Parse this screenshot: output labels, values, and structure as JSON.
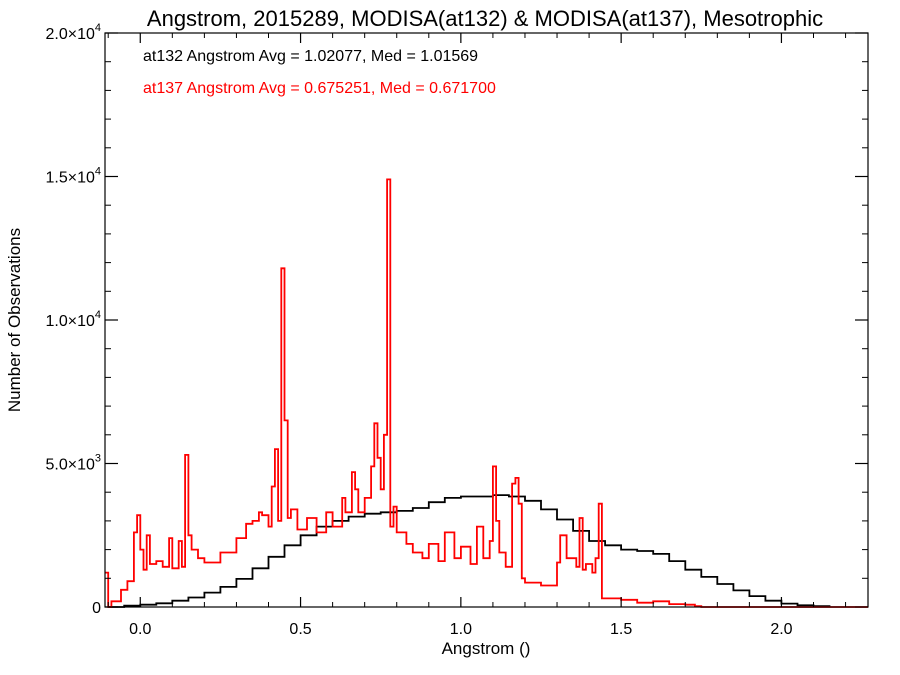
{
  "chart_data": {
    "type": "line",
    "title": "Angstrom, 2015289, MODISA(at132) & MODISA(at137), Mesotrophic",
    "xlabel": "Angstrom ()",
    "ylabel": "Number of Observations",
    "xlim": [
      -0.11,
      2.27
    ],
    "ylim": [
      0,
      20000
    ],
    "grid": false,
    "x_ticks": [
      {
        "value": 0.0,
        "label": "0.0"
      },
      {
        "value": 0.5,
        "label": "0.5"
      },
      {
        "value": 1.0,
        "label": "1.0"
      },
      {
        "value": 1.5,
        "label": "1.5"
      },
      {
        "value": 2.0,
        "label": "2.0"
      }
    ],
    "y_ticks": [
      {
        "value": 0,
        "mant": "0",
        "exp": ""
      },
      {
        "value": 5000,
        "mant": "5.0×10",
        "exp": "3"
      },
      {
        "value": 10000,
        "mant": "1.0×10",
        "exp": "4"
      },
      {
        "value": 15000,
        "mant": "1.5×10",
        "exp": "4"
      },
      {
        "value": 20000,
        "mant": "2.0×10",
        "exp": "4"
      }
    ],
    "annotations": [
      {
        "text": "at132 Angstrom Avg = 1.02077, Med = 1.01569",
        "color": "#000000"
      },
      {
        "text": "at137 Angstrom Avg = 0.675251, Med = 0.671700",
        "color": "#ff0000"
      }
    ],
    "series": [
      {
        "color": "#000000",
        "x": [
          -0.1,
          -0.05,
          0.0,
          0.05,
          0.1,
          0.15,
          0.2,
          0.25,
          0.3,
          0.35,
          0.4,
          0.45,
          0.5,
          0.55,
          0.6,
          0.65,
          0.7,
          0.75,
          0.8,
          0.85,
          0.9,
          0.95,
          1.0,
          1.05,
          1.1,
          1.15,
          1.2,
          1.25,
          1.3,
          1.35,
          1.4,
          1.45,
          1.5,
          1.55,
          1.6,
          1.65,
          1.7,
          1.75,
          1.8,
          1.85,
          1.9,
          1.95,
          2.0,
          2.05,
          2.1,
          2.15
        ],
        "y": [
          0,
          50,
          80,
          130,
          220,
          330,
          500,
          700,
          980,
          1350,
          1750,
          2150,
          2500,
          2800,
          3000,
          3150,
          3250,
          3300,
          3350,
          3450,
          3650,
          3800,
          3850,
          3850,
          3900,
          3850,
          3700,
          3400,
          3050,
          2650,
          2300,
          2150,
          2000,
          1950,
          1850,
          1600,
          1300,
          1050,
          800,
          580,
          380,
          220,
          120,
          60,
          30,
          0
        ]
      },
      {
        "color": "#ff0000",
        "x": [
          -0.11,
          -0.1,
          -0.09,
          -0.06,
          -0.04,
          -0.02,
          -0.01,
          0.0,
          0.01,
          0.02,
          0.03,
          0.05,
          0.07,
          0.09,
          0.1,
          0.12,
          0.13,
          0.14,
          0.15,
          0.16,
          0.18,
          0.2,
          0.25,
          0.3,
          0.33,
          0.35,
          0.37,
          0.38,
          0.4,
          0.41,
          0.42,
          0.43,
          0.44,
          0.45,
          0.46,
          0.47,
          0.49,
          0.52,
          0.55,
          0.58,
          0.6,
          0.63,
          0.64,
          0.66,
          0.67,
          0.68,
          0.7,
          0.72,
          0.73,
          0.74,
          0.75,
          0.76,
          0.77,
          0.775,
          0.78,
          0.79,
          0.8,
          0.83,
          0.85,
          0.88,
          0.9,
          0.93,
          0.95,
          0.98,
          1.0,
          1.03,
          1.05,
          1.07,
          1.09,
          1.1,
          1.11,
          1.12,
          1.14,
          1.16,
          1.17,
          1.18,
          1.19,
          1.2,
          1.25,
          1.3,
          1.31,
          1.33,
          1.36,
          1.37,
          1.38,
          1.39,
          1.41,
          1.42,
          1.43,
          1.44,
          1.5,
          1.55,
          1.6,
          1.65,
          1.7,
          1.73,
          1.75,
          2.27
        ],
        "y": [
          1200,
          0,
          200,
          600,
          900,
          2600,
          3200,
          2000,
          1300,
          2500,
          1500,
          1600,
          1400,
          2400,
          1350,
          2300,
          1400,
          5300,
          2500,
          2000,
          1700,
          1550,
          1900,
          2400,
          2900,
          3000,
          3300,
          3200,
          2800,
          4200,
          5500,
          3000,
          11800,
          6500,
          3100,
          3400,
          2700,
          3100,
          2600,
          3300,
          2800,
          3800,
          3300,
          4700,
          4100,
          3300,
          3800,
          4900,
          6400,
          5200,
          4100,
          6000,
          14900,
          14900,
          2800,
          3500,
          2600,
          2200,
          1900,
          1700,
          2200,
          1600,
          2600,
          1700,
          2100,
          1500,
          2800,
          1700,
          2300,
          4900,
          3000,
          1900,
          1400,
          4300,
          4500,
          3600,
          1000,
          850,
          750,
          1550,
          2500,
          1700,
          1400,
          3100,
          1300,
          1500,
          1200,
          1700,
          3600,
          300,
          250,
          150,
          200,
          100,
          80,
          30,
          0,
          0
        ]
      }
    ]
  }
}
